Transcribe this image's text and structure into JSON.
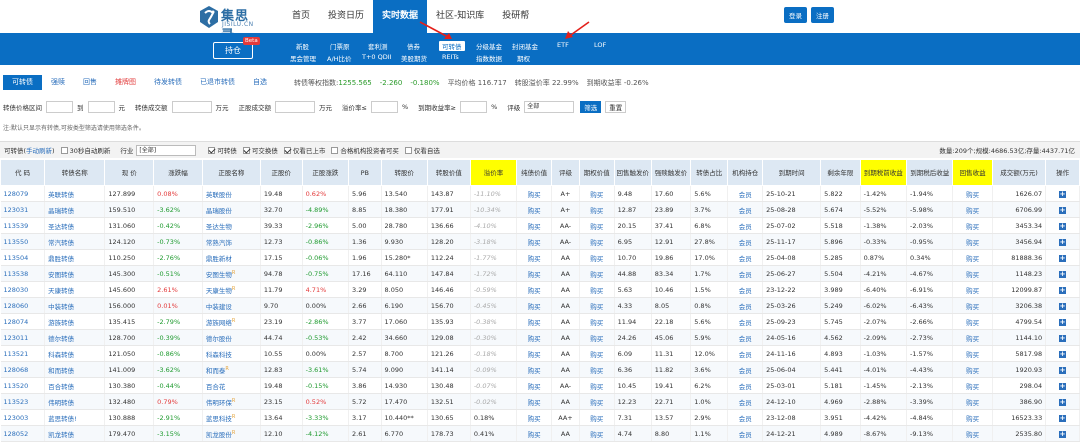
{
  "brand": {
    "name": "集思录",
    "sub": "JISILU.CN"
  },
  "nav": [
    "首页",
    "投资日历",
    "实时数据",
    "社区-知识库",
    "投研帮"
  ],
  "nav_active": 2,
  "top_buttons": {
    "login": "登录",
    "register": "注册"
  },
  "subnav": {
    "holding": "持仓",
    "beta": "Beta",
    "row1": [
      "新股",
      "门票原",
      "套利测",
      "债券",
      "可转债",
      "分级基金",
      "封闭基金",
      "ETF",
      "LOF"
    ],
    "row2": [
      "黑会管理",
      "A/H比价",
      "T+0 QDII",
      "美股期货",
      "REITs",
      "指数数据",
      "期权"
    ]
  },
  "tabs": [
    "可转债",
    "强赎",
    "回售",
    "摊牌图",
    "待发转债",
    "已退市转债",
    "自选"
  ],
  "stats": {
    "index_label": "转债等权指数:",
    "index_value": "1255.565",
    "change": "-2.260",
    "change_pct": "-0.180%",
    "avg_price": "平均价格 116.717",
    "premium": "转股溢价率 22.99%",
    "ytm": "到期收益率 -0.26%"
  },
  "filter": {
    "price_range": "转债价格区间",
    "to": "到",
    "yuan": "元",
    "volume": "转债成交额",
    "wan": "万元",
    "stock_volume": "正股成交额",
    "premium": "溢价率≤",
    "pct": "%",
    "ytm": "到期收益率≥",
    "rating": "评级",
    "rating_val": "全部",
    "filter_btn": "筛选",
    "reset_btn": "重置"
  },
  "note": "注:默认只显示有转债,可按类型筛选请使用筛选条件。",
  "toolbar": {
    "prefix": "可转债(",
    "manual": "手动刷新",
    "suffix": ")",
    "auto": "30秒自动刷新",
    "industry": "行业",
    "industry_val": "[全部]",
    "cb_convertible": "可转债",
    "cb_exchange": "可交换债",
    "cb_listed": "仅看已上市",
    "cb_qualified": "合格机构投资者可买",
    "cb_watch": "仅看自选",
    "count": "数量:209个;规模:4686.53亿;存量:4437.71亿"
  },
  "headers": [
    "代 码",
    "转债名称",
    "现 价",
    "涨跌幅",
    "正股名称",
    "正股价",
    "正股涨跌",
    "PB",
    "转股价",
    "转股价值",
    "溢价率",
    "纯债价值",
    "评级",
    "期权价值",
    "回售触发价",
    "强赎触发价",
    "转债占比",
    "机构持仓",
    "到期时间",
    "剩余年限",
    "到期税前收益",
    "到期税后收益",
    "回售收益",
    "成交额(万元)",
    "操作"
  ],
  "rows": [
    {
      "code": "128079",
      "name": "英联转债",
      "price": "127.899",
      "chg": "0.08%",
      "sname": "英联股份",
      "sprice": "19.48",
      "schg": "0.62%",
      "pb": "5.96",
      "cprice": "13.540",
      "cvalue": "143.87",
      "prem": "-11.10%",
      "bond": "购买",
      "rating": "A+",
      "opt": "购买",
      "put": "9.48",
      "call": "17.60",
      "ratio": "5.6%",
      "inst": "会员",
      "due": "25-10-21",
      "left": "5.822",
      "ytm": "-1.42%",
      "ytm2": "-1.94%",
      "putr": "购买",
      "vol": "1626.07",
      "r": 0
    },
    {
      "code": "123031",
      "name": "晶瑞转债",
      "price": "159.510",
      "chg": "-3.62%",
      "sname": "晶瑞股份",
      "sprice": "32.70",
      "schg": "-4.89%",
      "pb": "8.85",
      "cprice": "18.380",
      "cvalue": "177.91",
      "prem": "-10.34%",
      "bond": "购买",
      "rating": "A+",
      "opt": "购买",
      "put": "12.87",
      "call": "23.89",
      "ratio": "3.7%",
      "inst": "会员",
      "due": "25-08-28",
      "left": "5.674",
      "ytm": "-5.52%",
      "ytm2": "-5.98%",
      "putr": "购买",
      "vol": "6706.99",
      "r": 0
    },
    {
      "code": "113539",
      "name": "圣达转债",
      "price": "131.060",
      "chg": "-0.42%",
      "sname": "圣达生物",
      "sprice": "39.33",
      "schg": "-2.96%",
      "pb": "5.00",
      "cprice": "28.780",
      "cvalue": "136.66",
      "prem": "-4.10%",
      "bond": "购买",
      "rating": "AA-",
      "opt": "购买",
      "put": "20.15",
      "call": "37.41",
      "ratio": "6.8%",
      "inst": "会员",
      "due": "25-07-02",
      "left": "5.518",
      "ytm": "-1.38%",
      "ytm2": "-2.03%",
      "putr": "购买",
      "vol": "3453.34",
      "r": 0
    },
    {
      "code": "113550",
      "name": "常汽转债",
      "price": "124.120",
      "chg": "-0.73%",
      "sname": "常熟汽饰",
      "sprice": "12.73",
      "schg": "-0.86%",
      "pb": "1.36",
      "cprice": "9.930",
      "cvalue": "128.20",
      "prem": "-3.18%",
      "bond": "购买",
      "rating": "AA-",
      "opt": "购买",
      "put": "6.95",
      "call": "12.91",
      "ratio": "27.8%",
      "inst": "会员",
      "due": "25-11-17",
      "left": "5.896",
      "ytm": "-0.33%",
      "ytm2": "-0.95%",
      "putr": "购买",
      "vol": "3456.94",
      "r": 0
    },
    {
      "code": "113504",
      "name": "鼎胜转债",
      "price": "110.250",
      "chg": "-2.76%",
      "sname": "鼎胜新材",
      "sprice": "17.15",
      "schg": "-0.06%",
      "pb": "1.96",
      "cprice": "15.280*",
      "cvalue": "112.24",
      "prem": "-1.77%",
      "bond": "购买",
      "rating": "AA",
      "opt": "购买",
      "put": "10.70",
      "call": "19.86",
      "ratio": "17.0%",
      "inst": "会员",
      "due": "25-04-08",
      "left": "5.285",
      "ytm": "0.87%",
      "ytm2": "0.34%",
      "putr": "购买",
      "vol": "81888.36",
      "r": 0
    },
    {
      "code": "113538",
      "name": "安图转债",
      "price": "145.300",
      "chg": "-0.51%",
      "sname": "安图生物",
      "sprice": "94.78",
      "schg": "-0.75%",
      "pb": "17.16",
      "cprice": "64.110",
      "cvalue": "147.84",
      "prem": "-1.72%",
      "bond": "购买",
      "rating": "AA",
      "opt": "购买",
      "put": "44.88",
      "call": "83.34",
      "ratio": "1.7%",
      "inst": "会员",
      "due": "25-06-27",
      "left": "5.504",
      "ytm": "-4.21%",
      "ytm2": "-4.67%",
      "putr": "购买",
      "vol": "1148.23",
      "r": 1
    },
    {
      "code": "128030",
      "name": "天康转债",
      "price": "145.600",
      "chg": "2.61%",
      "sname": "天康生物",
      "sprice": "11.79",
      "schg": "4.71%",
      "pb": "3.29",
      "cprice": "8.050",
      "cvalue": "146.46",
      "prem": "-0.59%",
      "bond": "购买",
      "rating": "AA",
      "opt": "购买",
      "put": "5.63",
      "call": "10.46",
      "ratio": "1.5%",
      "inst": "会员",
      "due": "23-12-22",
      "left": "3.989",
      "ytm": "-6.40%",
      "ytm2": "-6.91%",
      "putr": "购买",
      "vol": "12099.87",
      "r": 1
    },
    {
      "code": "128060",
      "name": "中装转债",
      "price": "156.000",
      "chg": "0.01%",
      "sname": "中装建设",
      "sprice": "9.70",
      "schg": "0.00%",
      "pb": "2.66",
      "cprice": "6.190",
      "cvalue": "156.70",
      "prem": "-0.45%",
      "bond": "购买",
      "rating": "AA",
      "opt": "购买",
      "put": "4.33",
      "call": "8.05",
      "ratio": "0.8%",
      "inst": "会员",
      "due": "25-03-26",
      "left": "5.249",
      "ytm": "-6.02%",
      "ytm2": "-6.43%",
      "putr": "购买",
      "vol": "3206.38",
      "r": 0
    },
    {
      "code": "128074",
      "name": "游族转债",
      "price": "135.415",
      "chg": "-2.79%",
      "sname": "游族网络",
      "sprice": "23.19",
      "schg": "-2.86%",
      "pb": "3.77",
      "cprice": "17.060",
      "cvalue": "135.93",
      "prem": "-0.38%",
      "bond": "购买",
      "rating": "AA",
      "opt": "购买",
      "put": "11.94",
      "call": "22.18",
      "ratio": "5.6%",
      "inst": "会员",
      "due": "25-09-23",
      "left": "5.745",
      "ytm": "-2.07%",
      "ytm2": "-2.66%",
      "putr": "购买",
      "vol": "4799.54",
      "r": 1
    },
    {
      "code": "123011",
      "name": "德尔转债",
      "price": "128.700",
      "chg": "-0.39%",
      "sname": "德尔股份",
      "sprice": "44.74",
      "schg": "-0.53%",
      "pb": "2.42",
      "cprice": "34.660",
      "cvalue": "129.08",
      "prem": "-0.30%",
      "bond": "购买",
      "rating": "AA",
      "opt": "购买",
      "put": "24.26",
      "call": "45.06",
      "ratio": "5.9%",
      "inst": "会员",
      "due": "24-05-16",
      "left": "4.562",
      "ytm": "-2.09%",
      "ytm2": "-2.73%",
      "putr": "购买",
      "vol": "1144.10",
      "r": 0
    },
    {
      "code": "113521",
      "name": "科森转债",
      "price": "121.050",
      "chg": "-0.86%",
      "sname": "科森科技",
      "sprice": "10.55",
      "schg": "0.00%",
      "pb": "2.57",
      "cprice": "8.700",
      "cvalue": "121.26",
      "prem": "-0.18%",
      "bond": "购买",
      "rating": "AA",
      "opt": "购买",
      "put": "6.09",
      "call": "11.31",
      "ratio": "12.0%",
      "inst": "会员",
      "due": "24-11-16",
      "left": "4.893",
      "ytm": "-1.03%",
      "ytm2": "-1.57%",
      "putr": "购买",
      "vol": "5817.98",
      "r": 0
    },
    {
      "code": "128068",
      "name": "和而转债",
      "price": "141.009",
      "chg": "-3.62%",
      "sname": "和而泰",
      "sprice": "12.83",
      "schg": "-3.61%",
      "pb": "5.74",
      "cprice": "9.090",
      "cvalue": "141.14",
      "prem": "-0.09%",
      "bond": "购买",
      "rating": "AA",
      "opt": "购买",
      "put": "6.36",
      "call": "11.82",
      "ratio": "3.6%",
      "inst": "会员",
      "due": "25-06-04",
      "left": "5.441",
      "ytm": "-4.01%",
      "ytm2": "-4.43%",
      "putr": "购买",
      "vol": "1920.93",
      "r": 1
    },
    {
      "code": "113520",
      "name": "百合转债",
      "price": "130.380",
      "chg": "-0.44%",
      "sname": "百合花",
      "sprice": "19.48",
      "schg": "-0.15%",
      "pb": "3.86",
      "cprice": "14.930",
      "cvalue": "130.48",
      "prem": "-0.07%",
      "bond": "购买",
      "rating": "AA-",
      "opt": "购买",
      "put": "10.45",
      "call": "19.41",
      "ratio": "6.2%",
      "inst": "会员",
      "due": "25-03-01",
      "left": "5.181",
      "ytm": "-1.45%",
      "ytm2": "-2.13%",
      "putr": "购买",
      "vol": "298.04",
      "r": 0
    },
    {
      "code": "113523",
      "name": "伟明转债",
      "price": "132.480",
      "chg": "0.79%",
      "sname": "伟明环保",
      "sprice": "23.15",
      "schg": "0.52%",
      "pb": "5.72",
      "cprice": "17.470",
      "cvalue": "132.51",
      "prem": "-0.02%",
      "bond": "购买",
      "rating": "AA",
      "opt": "购买",
      "put": "12.23",
      "call": "22.71",
      "ratio": "1.0%",
      "inst": "会员",
      "due": "24-12-10",
      "left": "4.969",
      "ytm": "-2.88%",
      "ytm2": "-3.39%",
      "putr": "购买",
      "vol": "386.90",
      "r": 1
    },
    {
      "code": "123003",
      "name": "蓝思转债!",
      "price": "130.888",
      "chg": "-2.91%",
      "sname": "蓝思科技",
      "sprice": "13.64",
      "schg": "-3.33%",
      "pb": "3.17",
      "cprice": "10.440**",
      "cvalue": "130.65",
      "prem": "0.18%",
      "bond": "购买",
      "rating": "AA+",
      "opt": "购买",
      "put": "7.31",
      "call": "13.57",
      "ratio": "2.9%",
      "inst": "会员",
      "due": "23-12-08",
      "left": "3.951",
      "ytm": "-4.42%",
      "ytm2": "-4.84%",
      "putr": "购买",
      "vol": "16523.33",
      "r": 1
    },
    {
      "code": "128052",
      "name": "凯龙转债",
      "price": "179.470",
      "chg": "-3.15%",
      "sname": "凯龙股份",
      "sprice": "12.10",
      "schg": "-4.12%",
      "pb": "2.61",
      "cprice": "6.770",
      "cvalue": "178.73",
      "prem": "0.41%",
      "bond": "购买",
      "rating": "AA",
      "opt": "购买",
      "put": "4.74",
      "call": "8.80",
      "ratio": "1.1%",
      "inst": "会员",
      "due": "24-12-21",
      "left": "4.989",
      "ytm": "-8.67%",
      "ytm2": "-9.13%",
      "putr": "购买",
      "vol": "2535.80",
      "r": 1
    }
  ]
}
